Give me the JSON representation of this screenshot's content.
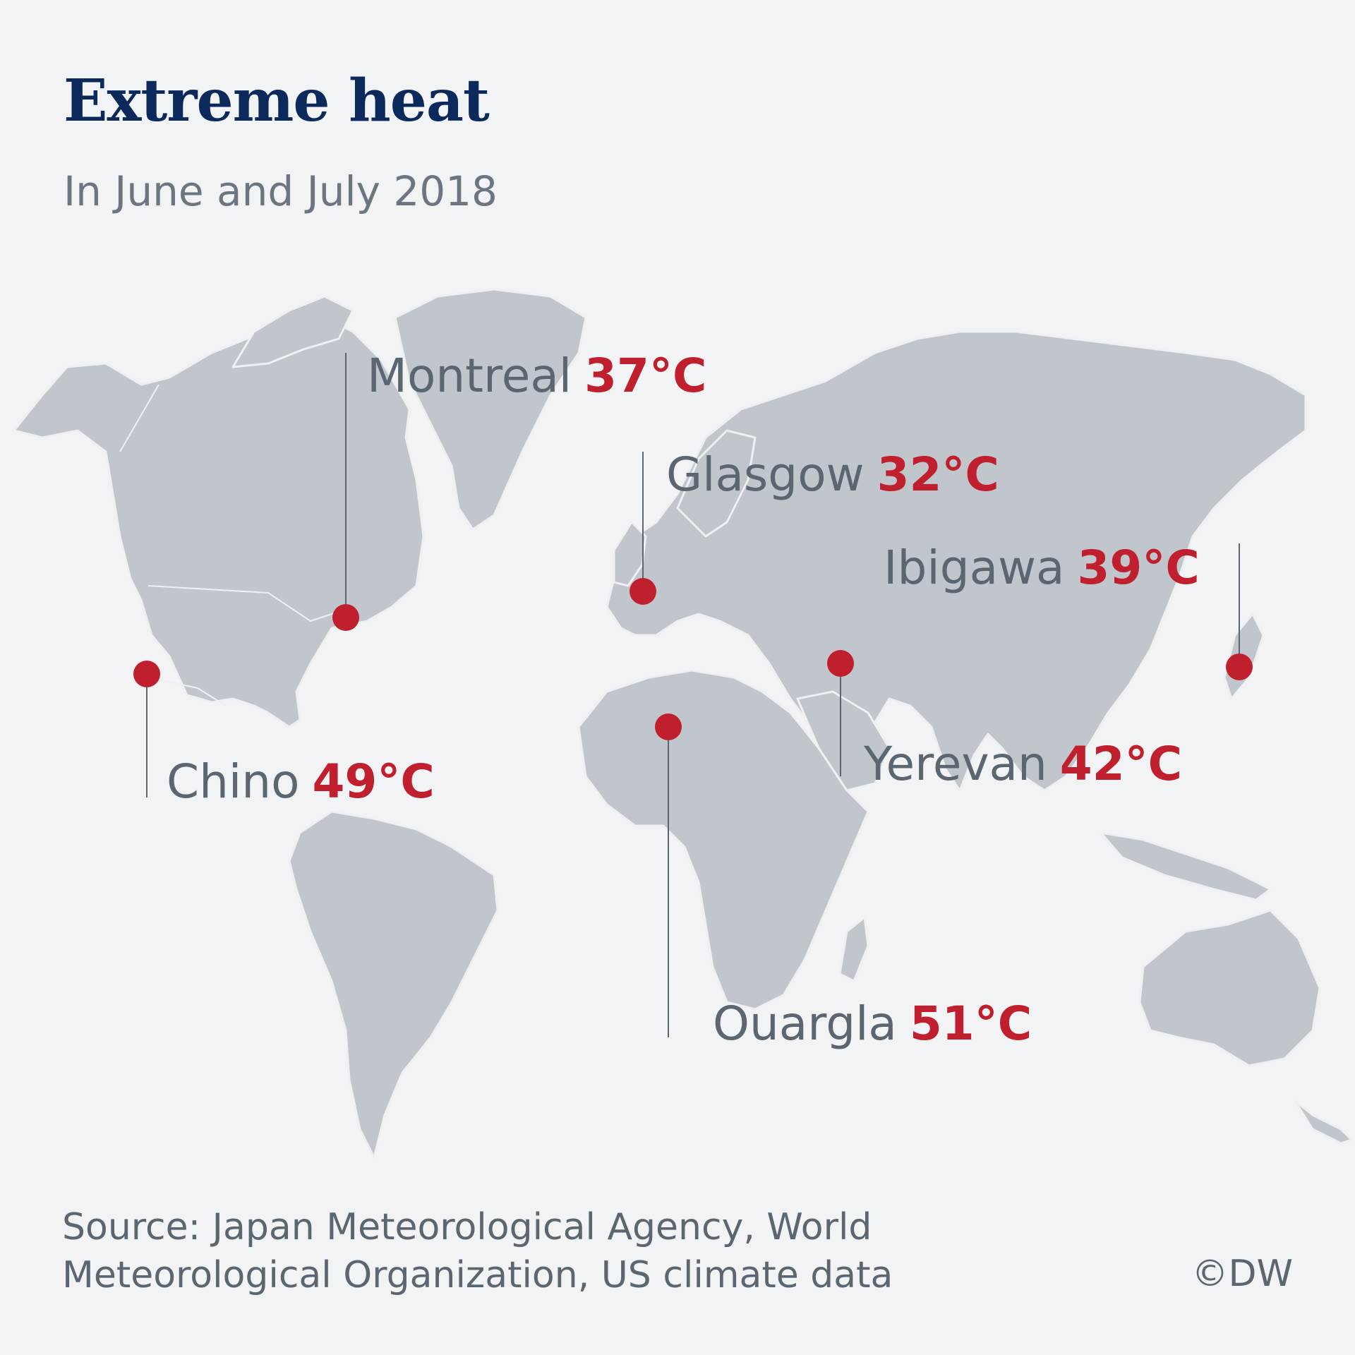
{
  "title": "Extreme heat",
  "subtitle": "In June and July 2018",
  "colors": {
    "land": "#c0c6cc",
    "border": "#eef0f2",
    "marker": "#c0202d",
    "temperature": "#c0202d",
    "label": "#5b6670",
    "title": "#0b2a5b"
  },
  "locations": [
    {
      "id": "montreal",
      "city": "Montreal",
      "temp": "37°C"
    },
    {
      "id": "glasgow",
      "city": "Glasgow",
      "temp": "32°C"
    },
    {
      "id": "ibigawa",
      "city": "Ibigawa",
      "temp": "39°C"
    },
    {
      "id": "chino",
      "city": "Chino",
      "temp": "49°C"
    },
    {
      "id": "yerevan",
      "city": "Yerevan",
      "temp": "42°C"
    },
    {
      "id": "ouargla",
      "city": "Ouargla",
      "temp": "51°C"
    }
  ],
  "source": {
    "line1": "Source:  Japan Meteorological Agency, World",
    "line2": "Meteorological Organization, US climate data"
  },
  "credit": "©DW"
}
